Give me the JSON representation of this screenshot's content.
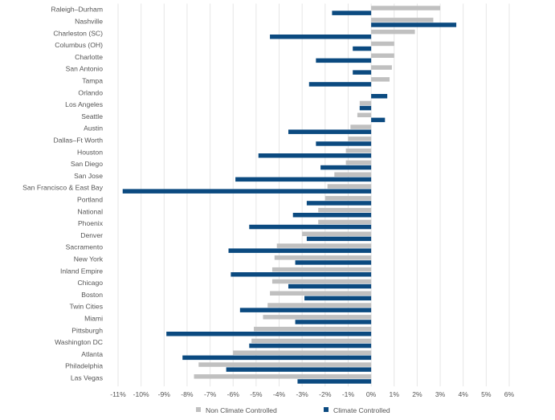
{
  "chart_data": {
    "type": "bar",
    "orientation": "horizontal",
    "categories": [
      "Raleigh–Durham",
      "Nashville",
      "Charleston (SC)",
      "Columbus (OH)",
      "Charlotte",
      "San Antonio",
      "Tampa",
      "Orlando",
      "Los Angeles",
      "Seattle",
      "Austin",
      "Dallas–Ft Worth",
      "Houston",
      "San Diego",
      "San Jose",
      "San Francisco & East Bay",
      "Portland",
      "National",
      "Phoenix",
      "Denver",
      "Sacramento",
      "New York",
      "Inland Empire",
      "Chicago",
      "Boston",
      "Twin Cities",
      "Miami",
      "Pittsburgh",
      "Washington DC",
      "Atlanta",
      "Philadelphia",
      "Las Vegas"
    ],
    "series": [
      {
        "name": "Non Climate Controlled",
        "color": "#c0c0c0",
        "values": [
          3.0,
          2.7,
          1.9,
          1.0,
          1.0,
          0.9,
          0.8,
          0.0,
          -0.5,
          -0.6,
          -0.9,
          -1.0,
          -1.1,
          -1.1,
          -1.6,
          -1.9,
          -2.0,
          -2.3,
          -2.3,
          -3.0,
          -4.1,
          -4.2,
          -4.3,
          -4.3,
          -4.4,
          -4.5,
          -4.7,
          -5.1,
          -5.2,
          -6.0,
          -7.5,
          -7.7
        ]
      },
      {
        "name": "Climate Controlled",
        "color": "#0b4a80",
        "values": [
          -1.7,
          3.7,
          -4.4,
          -0.8,
          -2.4,
          -0.8,
          -2.7,
          0.7,
          -0.5,
          0.6,
          -3.6,
          -2.4,
          -4.9,
          -2.2,
          -5.9,
          -10.8,
          -2.8,
          -3.4,
          -5.3,
          -2.8,
          -6.2,
          -3.3,
          -6.1,
          -3.6,
          -2.9,
          -5.7,
          -3.3,
          -8.9,
          -5.3,
          -8.2,
          -6.3,
          -3.2
        ]
      }
    ],
    "xlim": [
      -11,
      6
    ],
    "xticks": [
      -11,
      -10,
      -9,
      -8,
      -7,
      -6,
      -5,
      -4,
      -3,
      -2,
      -1,
      0,
      1,
      2,
      3,
      4,
      5,
      6
    ],
    "xtick_labels": [
      "-11%",
      "-10%",
      "-9%",
      "-8%",
      "-7%",
      "-6%",
      "-5%",
      "-4%",
      "-3%",
      "-2%",
      "-1%",
      "0%",
      "1%",
      "2%",
      "3%",
      "4%",
      "5%",
      "6%"
    ],
    "grid": "vertical",
    "legend": "bottom-center",
    "title": "",
    "xlabel": "",
    "ylabel": ""
  }
}
